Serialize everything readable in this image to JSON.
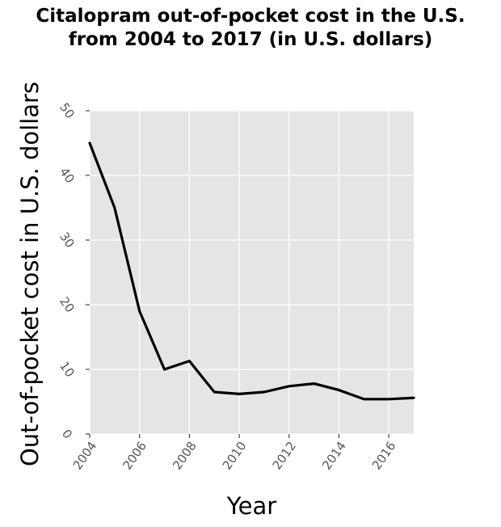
{
  "chart_data": {
    "type": "line",
    "title_lines": [
      "Citalopram out-of-pocket cost in the U.S.",
      "from 2004 to 2017 (in U.S. dollars)"
    ],
    "xlabel": "Year",
    "ylabel": "Out-of-pocket cost in U.S. dollars",
    "x": [
      2004,
      2005,
      2006,
      2007,
      2008,
      2009,
      2010,
      2011,
      2012,
      2013,
      2014,
      2015,
      2016,
      2017
    ],
    "values": [
      45,
      35,
      19,
      10,
      11.3,
      6.5,
      6.2,
      6.5,
      7.4,
      7.8,
      6.8,
      5.4,
      5.4,
      5.6
    ],
    "xlim": [
      2004,
      2017
    ],
    "ylim": [
      0,
      50
    ],
    "xticks": [
      2004,
      2006,
      2008,
      2010,
      2012,
      2014,
      2016
    ],
    "xtick_labels": [
      "2004",
      "2006",
      "2008",
      "2010",
      "2012",
      "2014",
      "2016"
    ],
    "yticks": [
      0,
      10,
      20,
      30,
      40,
      50
    ],
    "ytick_labels": [
      "0",
      "10",
      "20",
      "30",
      "40",
      "50"
    ],
    "grid": true,
    "line_color": "#000000",
    "panel_color": "#e5e5e5",
    "grid_color": "#ffffff"
  }
}
